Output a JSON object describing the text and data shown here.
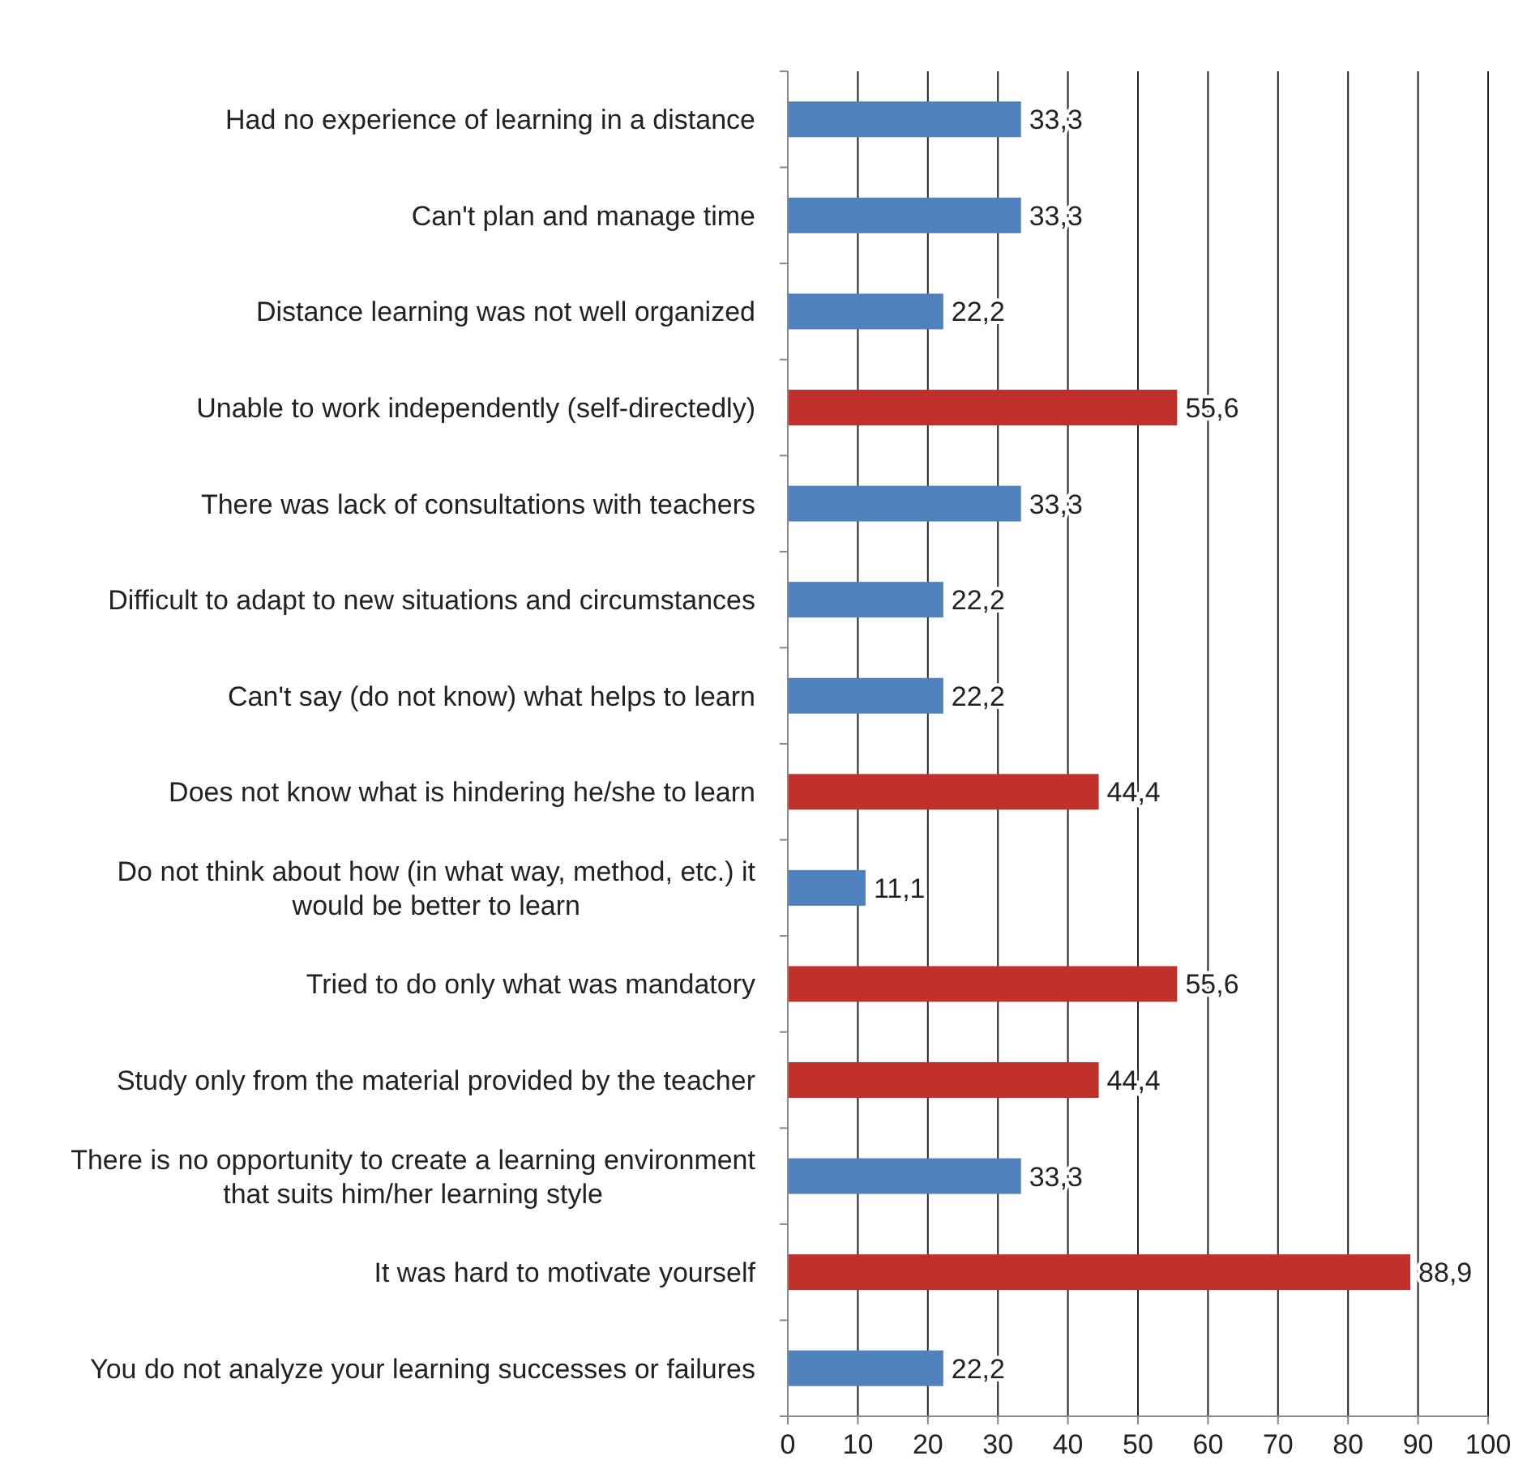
{
  "chart_data": {
    "type": "bar",
    "orientation": "horizontal",
    "categories": [
      "Had no experience of learning in a distance",
      "Can't plan and manage time",
      "Distance learning was not well organized",
      "Unable to work independently (self-directedly)",
      "There was lack of consultations with teachers",
      "Difficult to adapt to new situations and circumstances",
      "Can't say (do not know) what helps to learn",
      "Does not know what is hindering he/she to learn",
      "Do not think about how (in what way, method, etc.) it would be better to learn",
      "Tried to do only what was mandatory",
      "Study only from the material provided by the teacher",
      "There is no opportunity to create a learning environment that suits him/her learning style",
      "It was hard to motivate yourself",
      "You do not analyze your learning successes or failures"
    ],
    "values": [
      33.3,
      33.3,
      22.2,
      55.6,
      33.3,
      22.2,
      22.2,
      44.4,
      11.1,
      55.6,
      44.4,
      33.3,
      88.9,
      22.2
    ],
    "colors": [
      "#4f81bd",
      "#4f81bd",
      "#4f81bd",
      "#c0312b",
      "#4f81bd",
      "#4f81bd",
      "#4f81bd",
      "#c0312b",
      "#4f81bd",
      "#c0312b",
      "#c0312b",
      "#4f81bd",
      "#c0312b",
      "#4f81bd"
    ],
    "value_labels": [
      "33,3",
      "33,3",
      "22,2",
      "55,6",
      "33,3",
      "22,2",
      "22,2",
      "44,4",
      "11,1",
      "55,6",
      "44,4",
      "33,3",
      "88,9",
      "22,2"
    ],
    "xlim": [
      0,
      100
    ],
    "xticks": [
      0,
      10,
      20,
      30,
      40,
      50,
      60,
      70,
      80,
      90,
      100
    ],
    "grid": "x"
  }
}
